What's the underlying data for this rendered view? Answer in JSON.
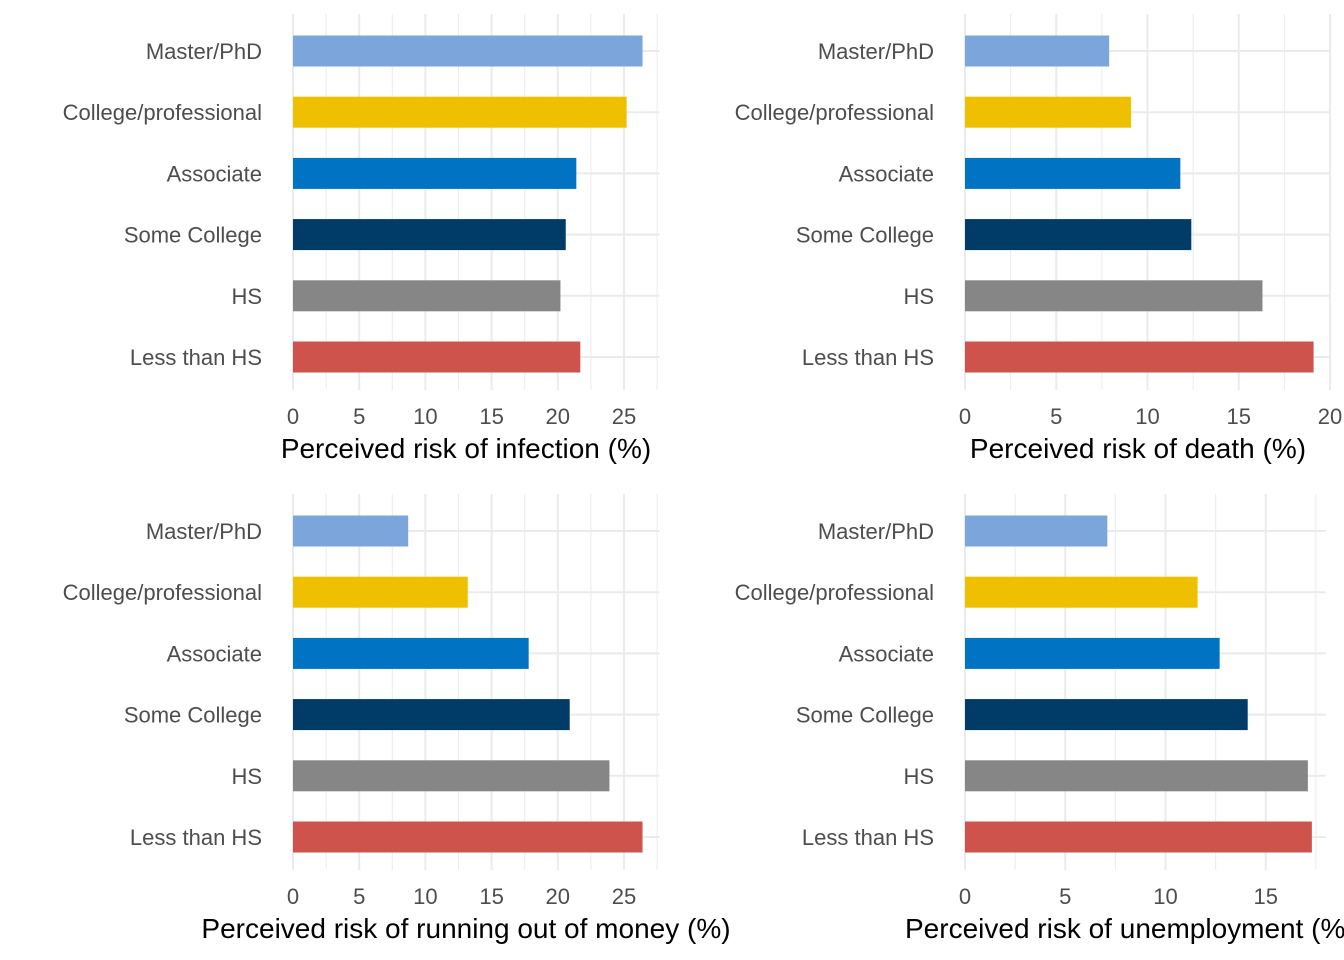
{
  "chart_data": [
    {
      "type": "bar",
      "orientation": "horizontal",
      "categories": [
        "Less than HS",
        "HS",
        "Some College",
        "Associate",
        "College/professional",
        "Master/PhD"
      ],
      "values": [
        21.7,
        20.2,
        20.6,
        21.4,
        25.2,
        26.4
      ],
      "colors": [
        "#CD534C",
        "#868686",
        "#003C67",
        "#0073C2",
        "#EFC000",
        "#7AA6DC"
      ],
      "xlabel": "Perceived risk of infection (%)",
      "ylabel": "",
      "xticks": [
        0,
        5,
        10,
        15,
        20,
        25
      ],
      "xlim": [
        0,
        27.7
      ],
      "grid": true,
      "legend": "none"
    },
    {
      "type": "bar",
      "orientation": "horizontal",
      "categories": [
        "Less than HS",
        "HS",
        "Some College",
        "Associate",
        "College/professional",
        "Master/PhD"
      ],
      "values": [
        19.1,
        16.3,
        12.4,
        11.8,
        9.1,
        7.9
      ],
      "colors": [
        "#CD534C",
        "#868686",
        "#003C67",
        "#0073C2",
        "#EFC000",
        "#7AA6DC"
      ],
      "xlabel": "Perceived risk of death (%)",
      "ylabel": "",
      "xticks": [
        0,
        5,
        10,
        15,
        20
      ],
      "xlim": [
        0,
        20.0
      ],
      "grid": true,
      "legend": "none"
    },
    {
      "type": "bar",
      "orientation": "horizontal",
      "categories": [
        "Less than HS",
        "HS",
        "Some College",
        "Associate",
        "College/professional",
        "Master/PhD"
      ],
      "values": [
        26.4,
        23.9,
        20.9,
        17.8,
        13.2,
        8.7
      ],
      "colors": [
        "#CD534C",
        "#868686",
        "#003C67",
        "#0073C2",
        "#EFC000",
        "#7AA6DC"
      ],
      "xlabel": "Perceived risk of running out of money (%)",
      "ylabel": "",
      "xticks": [
        0,
        5,
        10,
        15,
        20,
        25
      ],
      "xlim": [
        0,
        27.7
      ],
      "grid": true,
      "legend": "none"
    },
    {
      "type": "bar",
      "orientation": "horizontal",
      "categories": [
        "Less than HS",
        "HS",
        "Some College",
        "Associate",
        "College/professional",
        "Master/PhD"
      ],
      "values": [
        17.3,
        17.1,
        14.1,
        12.7,
        11.6,
        7.1
      ],
      "colors": [
        "#CD534C",
        "#868686",
        "#003C67",
        "#0073C2",
        "#EFC000",
        "#7AA6DC"
      ],
      "xlabel": "Perceived risk of unemployment (%)",
      "ylabel": "",
      "xticks": [
        0,
        5,
        10,
        15
      ],
      "xlim": [
        0,
        18.0
      ],
      "grid": true,
      "legend": "none"
    }
  ]
}
